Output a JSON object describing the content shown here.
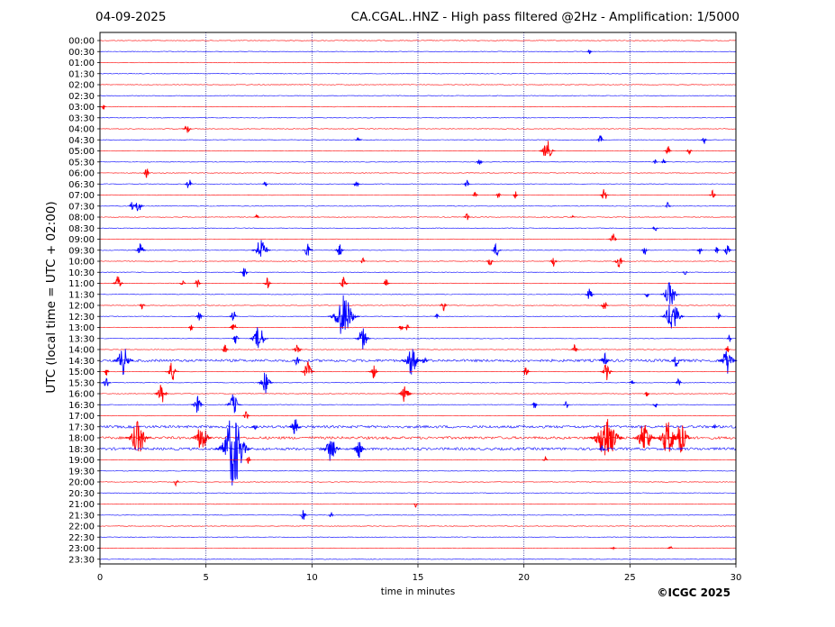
{
  "header": {
    "date": "04-09-2025",
    "title": "CA.CGAL..HNZ - High pass filtered @2Hz - Amplification: 1/5000"
  },
  "footer": {
    "copyright": "©ICGC 2025"
  },
  "colors": {
    "trace_a": "#ff0000",
    "trace_b": "#0000ff",
    "frame": "#000000",
    "gridline": "#1a1a8c"
  },
  "chart_data": {
    "type": "helicorder",
    "xlabel": "time in minutes",
    "ylabel": "UTC (local time = UTC + 02:00)",
    "xlim": [
      0,
      30
    ],
    "xticks": [
      0,
      5,
      10,
      15,
      20,
      25,
      30
    ],
    "xgrid": "dotted vertical lines at 5-minute intervals",
    "row_labels": [
      "00:00",
      "00:30",
      "01:00",
      "01:30",
      "02:00",
      "02:30",
      "03:00",
      "03:30",
      "04:00",
      "04:30",
      "05:00",
      "05:30",
      "06:00",
      "06:30",
      "07:00",
      "07:30",
      "08:00",
      "08:30",
      "09:00",
      "09:30",
      "10:00",
      "10:30",
      "11:00",
      "11:30",
      "12:00",
      "12:30",
      "13:00",
      "13:30",
      "14:00",
      "14:30",
      "15:00",
      "15:30",
      "16:00",
      "16:30",
      "17:00",
      "17:30",
      "18:00",
      "18:30",
      "19:00",
      "19:30",
      "20:00",
      "20:30",
      "21:00",
      "21:30",
      "22:00",
      "22:30",
      "23:00",
      "23:30"
    ],
    "row_colors": "alternating red (even rows) and blue (odd rows)",
    "events": [
      {
        "row": 1,
        "min": 23.1,
        "amp": 0.25
      },
      {
        "row": 6,
        "min": 0.15,
        "amp": 0.35
      },
      {
        "row": 8,
        "min": 4.1,
        "amp": 0.6
      },
      {
        "row": 9,
        "min": 12.2,
        "amp": 0.4
      },
      {
        "row": 9,
        "min": 23.6,
        "amp": 0.45
      },
      {
        "row": 9,
        "min": 28.5,
        "amp": 0.4
      },
      {
        "row": 10,
        "min": 21.1,
        "amp": 1.0
      },
      {
        "row": 10,
        "min": 26.8,
        "amp": 0.45
      },
      {
        "row": 10,
        "min": 27.8,
        "amp": 0.4
      },
      {
        "row": 11,
        "min": 17.9,
        "amp": 0.45
      },
      {
        "row": 11,
        "min": 26.6,
        "amp": 0.35
      },
      {
        "row": 11,
        "min": 26.2,
        "amp": 0.3
      },
      {
        "row": 12,
        "min": 2.2,
        "amp": 0.45
      },
      {
        "row": 13,
        "min": 4.2,
        "amp": 0.55
      },
      {
        "row": 13,
        "min": 7.8,
        "amp": 0.35
      },
      {
        "row": 13,
        "min": 12.1,
        "amp": 0.45
      },
      {
        "row": 13,
        "min": 17.3,
        "amp": 0.4
      },
      {
        "row": 14,
        "min": 17.7,
        "amp": 0.4
      },
      {
        "row": 14,
        "min": 18.8,
        "amp": 0.35
      },
      {
        "row": 14,
        "min": 19.6,
        "amp": 0.35
      },
      {
        "row": 14,
        "min": 23.8,
        "amp": 0.6
      },
      {
        "row": 14,
        "min": 28.9,
        "amp": 0.45
      },
      {
        "row": 15,
        "min": 1.5,
        "amp": 0.4
      },
      {
        "row": 15,
        "min": 1.8,
        "amp": 0.7
      },
      {
        "row": 15,
        "min": 26.8,
        "amp": 0.4
      },
      {
        "row": 16,
        "min": 7.4,
        "amp": 0.3
      },
      {
        "row": 16,
        "min": 17.3,
        "amp": 0.45
      },
      {
        "row": 16,
        "min": 22.3,
        "amp": 0.2
      },
      {
        "row": 17,
        "min": 26.2,
        "amp": 0.4
      },
      {
        "row": 18,
        "min": 24.2,
        "amp": 0.55
      },
      {
        "row": 19,
        "min": 1.9,
        "amp": 0.7
      },
      {
        "row": 19,
        "min": 7.6,
        "amp": 1.2
      },
      {
        "row": 19,
        "min": 9.8,
        "amp": 0.65
      },
      {
        "row": 19,
        "min": 11.3,
        "amp": 0.6
      },
      {
        "row": 19,
        "min": 18.7,
        "amp": 0.65
      },
      {
        "row": 19,
        "min": 25.7,
        "amp": 0.45
      },
      {
        "row": 19,
        "min": 28.3,
        "amp": 0.4
      },
      {
        "row": 19,
        "min": 29.1,
        "amp": 0.35
      },
      {
        "row": 19,
        "min": 29.6,
        "amp": 0.55
      },
      {
        "row": 20,
        "min": 12.4,
        "amp": 0.35
      },
      {
        "row": 20,
        "min": 18.4,
        "amp": 0.5
      },
      {
        "row": 20,
        "min": 21.4,
        "amp": 0.5
      },
      {
        "row": 20,
        "min": 24.5,
        "amp": 0.7
      },
      {
        "row": 21,
        "min": 6.8,
        "amp": 0.55
      },
      {
        "row": 21,
        "min": 27.6,
        "amp": 0.35
      },
      {
        "row": 22,
        "min": 0.85,
        "amp": 0.7
      },
      {
        "row": 22,
        "min": 3.9,
        "amp": 0.4
      },
      {
        "row": 22,
        "min": 4.6,
        "amp": 0.45
      },
      {
        "row": 22,
        "min": 7.9,
        "amp": 0.55
      },
      {
        "row": 22,
        "min": 11.5,
        "amp": 0.6
      },
      {
        "row": 22,
        "min": 13.5,
        "amp": 0.45
      },
      {
        "row": 23,
        "min": 23.1,
        "amp": 0.6
      },
      {
        "row": 23,
        "min": 25.8,
        "amp": 0.35
      },
      {
        "row": 23,
        "min": 26.9,
        "amp": 1.2
      },
      {
        "row": 24,
        "min": 2,
        "amp": 0.4
      },
      {
        "row": 24,
        "min": 16.2,
        "amp": 0.5
      },
      {
        "row": 24,
        "min": 23.8,
        "amp": 0.5
      },
      {
        "row": 25,
        "min": 4.7,
        "amp": 0.5
      },
      {
        "row": 25,
        "min": 6.3,
        "amp": 0.55
      },
      {
        "row": 25,
        "min": 11.5,
        "amp": 2.0
      },
      {
        "row": 25,
        "min": 15.9,
        "amp": 0.25
      },
      {
        "row": 25,
        "min": 27.0,
        "amp": 1.5
      },
      {
        "row": 25,
        "min": 29.2,
        "amp": 0.35
      },
      {
        "row": 26,
        "min": 4.3,
        "amp": 0.35
      },
      {
        "row": 26,
        "min": 6.3,
        "amp": 0.55
      },
      {
        "row": 26,
        "min": 14.2,
        "amp": 0.4
      },
      {
        "row": 26,
        "min": 14.5,
        "amp": 0.35
      },
      {
        "row": 27,
        "min": 6.4,
        "amp": 0.5
      },
      {
        "row": 27,
        "min": 7.5,
        "amp": 1.2
      },
      {
        "row": 27,
        "min": 12.4,
        "amp": 1.0
      },
      {
        "row": 27,
        "min": 29.7,
        "amp": 0.35
      },
      {
        "row": 28,
        "min": 5.9,
        "amp": 0.45
      },
      {
        "row": 28,
        "min": 9.3,
        "amp": 0.65
      },
      {
        "row": 28,
        "min": 22.4,
        "amp": 0.5
      },
      {
        "row": 28,
        "min": 29.6,
        "amp": 0.35
      },
      {
        "row": 29,
        "min": 1.1,
        "amp": 1.3
      },
      {
        "row": 29,
        "min": 9.3,
        "amp": 0.5
      },
      {
        "row": 29,
        "min": 14.7,
        "amp": 1.3
      },
      {
        "row": 29,
        "min": 15.3,
        "amp": 0.5
      },
      {
        "row": 29,
        "min": 23.8,
        "amp": 0.7
      },
      {
        "row": 29,
        "min": 27.2,
        "amp": 0.65
      },
      {
        "row": 29,
        "min": 29.6,
        "amp": 1.2
      },
      {
        "row": 30,
        "min": 0.3,
        "amp": 0.4
      },
      {
        "row": 30,
        "min": 3.4,
        "amp": 0.9
      },
      {
        "row": 30,
        "min": 9.8,
        "amp": 0.9
      },
      {
        "row": 30,
        "min": 12.9,
        "amp": 0.65
      },
      {
        "row": 30,
        "min": 20.1,
        "amp": 0.5
      },
      {
        "row": 30,
        "min": 23.9,
        "amp": 0.8
      },
      {
        "row": 31,
        "min": 0.3,
        "amp": 0.6
      },
      {
        "row": 31,
        "min": 7.8,
        "amp": 1.0
      },
      {
        "row": 31,
        "min": 25.1,
        "amp": 0.4
      },
      {
        "row": 31,
        "min": 27.3,
        "amp": 0.4
      },
      {
        "row": 32,
        "min": 2.9,
        "amp": 0.9
      },
      {
        "row": 32,
        "min": 14.4,
        "amp": 0.9
      },
      {
        "row": 32,
        "min": 25.8,
        "amp": 0.35
      },
      {
        "row": 33,
        "min": 4.6,
        "amp": 0.8
      },
      {
        "row": 33,
        "min": 6.3,
        "amp": 1.0
      },
      {
        "row": 33,
        "min": 20.5,
        "amp": 0.4
      },
      {
        "row": 33,
        "min": 22,
        "amp": 0.4
      },
      {
        "row": 33,
        "min": 26.2,
        "amp": 0.35
      },
      {
        "row": 34,
        "min": 6.9,
        "amp": 0.45
      },
      {
        "row": 35,
        "min": 7.3,
        "amp": 0.4
      },
      {
        "row": 35,
        "min": 9.2,
        "amp": 0.8
      },
      {
        "row": 35,
        "min": 29.0,
        "amp": 0.2
      },
      {
        "row": 36,
        "min": 1.8,
        "amp": 1.6
      },
      {
        "row": 36,
        "min": 4.8,
        "amp": 1.3
      },
      {
        "row": 36,
        "min": 23.9,
        "amp": 2.2
      },
      {
        "row": 36,
        "min": 25.7,
        "amp": 1.5
      },
      {
        "row": 36,
        "min": 26.8,
        "amp": 1.6
      },
      {
        "row": 36,
        "min": 27.4,
        "amp": 1.4
      },
      {
        "row": 37,
        "min": 6.3,
        "amp": 3.5
      },
      {
        "row": 37,
        "min": 10.9,
        "amp": 1.2
      },
      {
        "row": 37,
        "min": 12.2,
        "amp": 0.9
      },
      {
        "row": 37,
        "min": 23.7,
        "amp": 0.4
      },
      {
        "row": 38,
        "min": 7.0,
        "amp": 0.35
      },
      {
        "row": 38,
        "min": 21.0,
        "amp": 0.35
      },
      {
        "row": 40,
        "min": 3.6,
        "amp": 0.4
      },
      {
        "row": 42,
        "min": 14.9,
        "amp": 0.3
      },
      {
        "row": 43,
        "min": 9.6,
        "amp": 0.5
      },
      {
        "row": 43,
        "min": 10.9,
        "amp": 0.3
      },
      {
        "row": 46,
        "min": 24.2,
        "amp": 0.25
      },
      {
        "row": 46,
        "min": 26.9,
        "amp": 0.25
      }
    ],
    "noisy_rows": [
      29,
      35,
      36,
      37
    ]
  }
}
